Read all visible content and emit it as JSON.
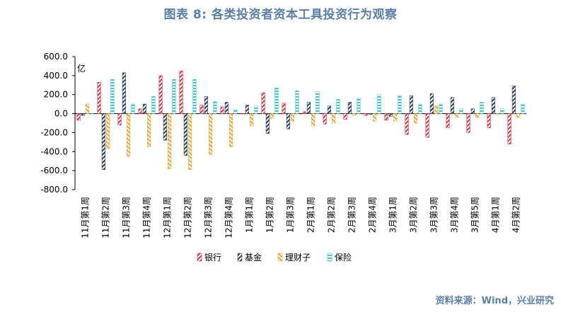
{
  "title": "图表 8:  各类投资者资本工具投资行为观察",
  "source": "资料来源：Wind，兴业研究",
  "chart_data": {
    "type": "bar",
    "unit_label": "亿",
    "ylim": [
      -800,
      600
    ],
    "yticks": [
      "600.0",
      "400.0",
      "200.0",
      "0.0",
      "-200.0",
      "-400.0",
      "-600.0",
      "-800.0"
    ],
    "categories": [
      "11月第1周",
      "11月第2周",
      "11月第3周",
      "11月第4周",
      "12月第1周",
      "12月第2周",
      "12月第3周",
      "12月第4周",
      "1月第1周",
      "1月第2周",
      "1月第3周",
      "2月第1周",
      "2月第2周",
      "2月第3周",
      "2月第4周",
      "3月第1周",
      "3月第2周",
      "3月第3周",
      "3月第4周",
      "3月第5周",
      "4月第1周",
      "4月第2周"
    ],
    "series": [
      {
        "name": "银行",
        "color": "#d9344a",
        "values": [
          -70,
          330,
          -120,
          50,
          400,
          450,
          90,
          70,
          0,
          220,
          110,
          20,
          -110,
          -60,
          -20,
          -70,
          -220,
          -250,
          -150,
          -200,
          -150,
          -320
        ]
      },
      {
        "name": "基金",
        "color": "#2f3f5e",
        "values": [
          -20,
          -590,
          430,
          100,
          -280,
          -440,
          180,
          120,
          90,
          -210,
          -160,
          120,
          80,
          120,
          -10,
          -30,
          190,
          210,
          170,
          50,
          170,
          290
        ]
      },
      {
        "name": "理财子",
        "color": "#e8a838",
        "values": [
          100,
          -370,
          -450,
          -350,
          -580,
          -590,
          -430,
          -350,
          -130,
          -50,
          -80,
          -130,
          -100,
          -20,
          -80,
          -80,
          -100,
          80,
          -40,
          -40,
          -10,
          -40
        ]
      },
      {
        "name": "保险",
        "color": "#40c4cc",
        "values": [
          0,
          360,
          100,
          180,
          360,
          360,
          130,
          40,
          80,
          270,
          240,
          230,
          150,
          160,
          200,
          190,
          100,
          100,
          50,
          120,
          50,
          100
        ]
      }
    ]
  }
}
